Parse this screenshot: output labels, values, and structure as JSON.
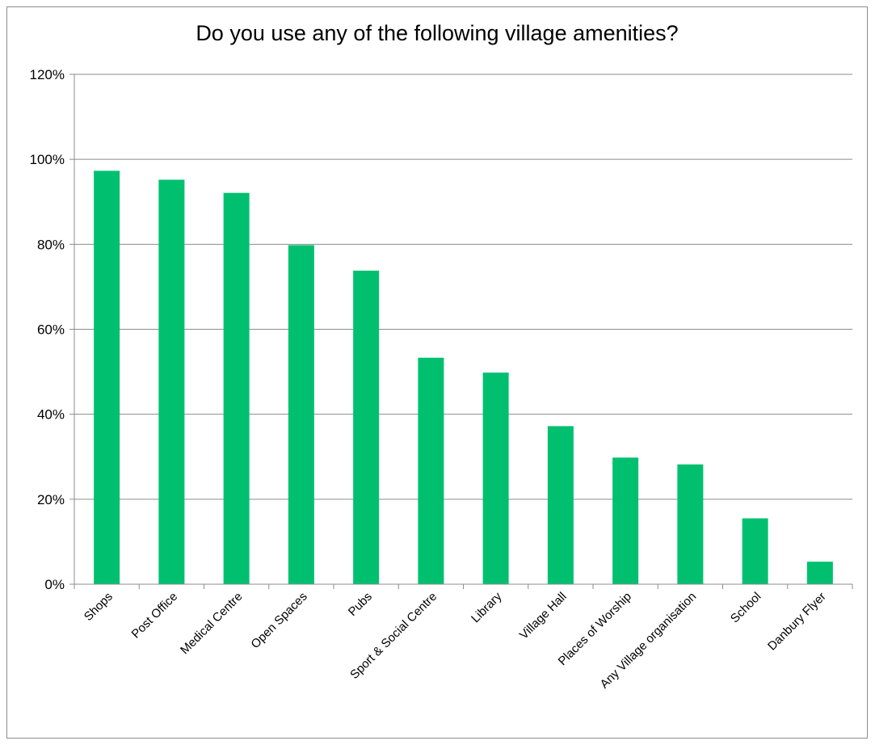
{
  "chart_data": {
    "type": "bar",
    "title": "Do you use any of the following village amenities?",
    "categories": [
      "Shops",
      "Post Office",
      "Medical Centre",
      "Open Spaces",
      "Pubs",
      "Sport & Social Centre",
      "Library",
      "Village Hall",
      "Places of Worship",
      "Any Village organisation",
      "School",
      "Danbury Flyer"
    ],
    "values": [
      97.3,
      95.2,
      92.1,
      79.8,
      73.8,
      53.3,
      49.8,
      37.2,
      29.8,
      28.2,
      15.5,
      5.3
    ],
    "ylim": [
      0,
      120
    ],
    "yticks": [
      "0%",
      "20%",
      "40%",
      "60%",
      "80%",
      "100%",
      "120%"
    ],
    "xlabel": "",
    "ylabel": "",
    "grid": true,
    "bar_color": "#00c070",
    "grid_color": "#8c8c8c"
  }
}
